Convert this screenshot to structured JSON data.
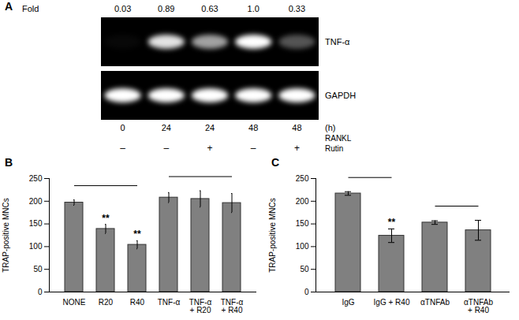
{
  "chart_data": [
    {
      "panel": "A",
      "type": "gel",
      "fold_label": "Fold",
      "values": [
        0.03,
        0.89,
        0.63,
        1.0,
        0.33
      ],
      "value_labels": [
        "0.03",
        "0.89",
        "0.63",
        "1.0",
        "0.33"
      ],
      "bands": [
        "TNF-α",
        "GAPDH"
      ],
      "categories": [
        "0",
        "24",
        "24",
        "48",
        "48"
      ],
      "x_unit": "(h)",
      "x_label": "RANKL",
      "treatment_label": "Rutin",
      "treatment": [
        "–",
        "–",
        "+",
        "–",
        "+"
      ]
    },
    {
      "panel": "B",
      "type": "bar",
      "categories": [
        "NONE",
        "R20",
        "R40",
        "TNF-α",
        "TNF-α + R20",
        "TNF-α + R40"
      ],
      "values": [
        197,
        139,
        104,
        208,
        205,
        196
      ],
      "errors": [
        6,
        10,
        9,
        11,
        18,
        21
      ],
      "color": "#808080",
      "ylabel": "TRAP-positive MNCs",
      "ylim": [
        0,
        250
      ],
      "yticks": [
        0,
        50,
        100,
        150,
        200,
        250
      ],
      "groups": [
        [
          "NONE",
          "R40"
        ],
        [
          "TNF-α",
          "TNF-α + R40"
        ]
      ],
      "annotations": [
        {
          "category": "R20",
          "text": "**"
        },
        {
          "category": "R40",
          "text": "**"
        }
      ]
    },
    {
      "panel": "C",
      "type": "bar",
      "categories": [
        "IgG",
        "IgG + R40",
        "αTNFAb",
        "αTNFAb + R40"
      ],
      "values": [
        217,
        124,
        153,
        136
      ],
      "errors": [
        4,
        15,
        4,
        22
      ],
      "color": "#808080",
      "ylabel": "TRAP-positive MNCs",
      "ylim": [
        0,
        250
      ],
      "yticks": [
        0,
        50,
        100,
        150,
        200,
        250
      ],
      "groups": [
        [
          "IgG",
          "IgG + R40"
        ],
        [
          "αTNFAb",
          "αTNFAb + R40"
        ]
      ],
      "annotations": [
        {
          "category": "IgG + R40",
          "text": "**"
        }
      ]
    }
  ]
}
